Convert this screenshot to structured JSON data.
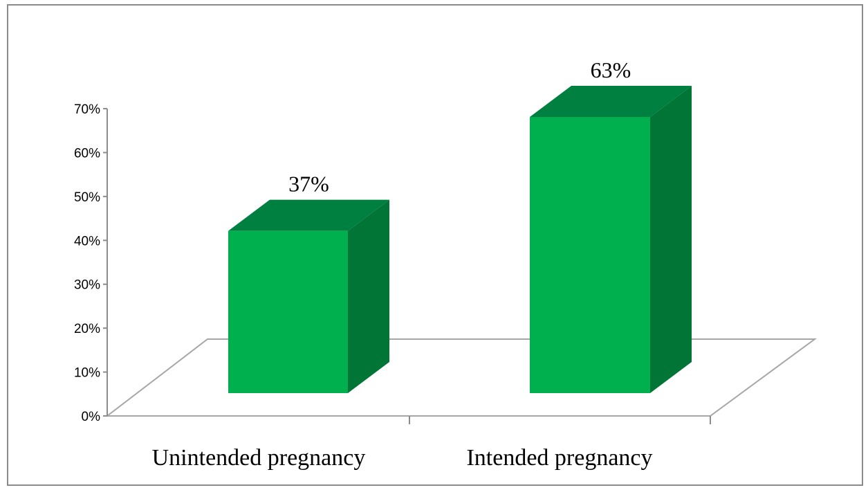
{
  "chart_data": {
    "type": "bar",
    "style": "3d-column",
    "categories": [
      "Unintended pregnancy",
      "Intended pregnancy"
    ],
    "values": [
      37,
      63
    ],
    "data_labels": [
      "37%",
      "63%"
    ],
    "y_ticks": [
      "0%",
      "10%",
      "20%",
      "30%",
      "40%",
      "50%",
      "60%",
      "70%"
    ],
    "ylim": [
      0,
      70
    ],
    "grid": false,
    "legend": "none",
    "colors": {
      "front": "#00b04f",
      "top": "#008040",
      "side": "#007535",
      "floor": "#a6a6a6"
    }
  }
}
